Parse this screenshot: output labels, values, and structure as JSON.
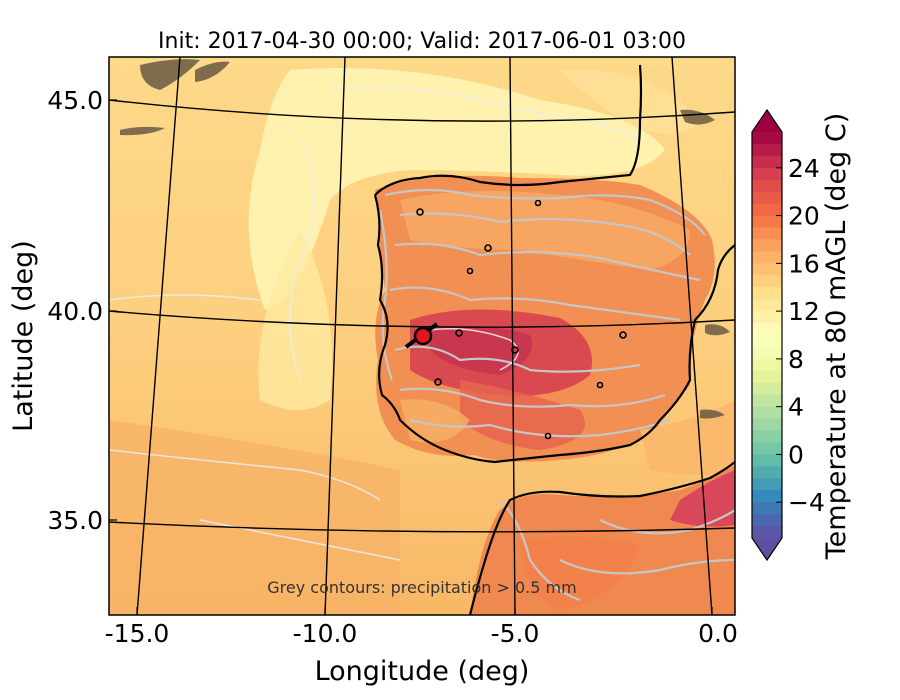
{
  "title": "Init: 2017-04-30 00:00; Valid: 2017-06-01 03:00",
  "xlabel": "Longitude (deg)",
  "ylabel": "Latitude (deg)",
  "x_ticks": [
    "-15.0",
    "-10.0",
    "-5.0",
    "0.0"
  ],
  "y_ticks": [
    "45.0",
    "40.0",
    "35.0"
  ],
  "annotation": "Grey contours: precipitation > 0.5 mm",
  "colorbar": {
    "label": "Temperature at 80 mAGL (deg C)",
    "ticks": [
      "24",
      "20",
      "16",
      "12",
      "8",
      "4",
      "0",
      "−4"
    ],
    "range": [
      -7,
      27
    ],
    "extend": "both"
  },
  "map": {
    "lon_range": [
      -16,
      0.3
    ],
    "lat_range": [
      32.6,
      46.2
    ],
    "marker_color": "#e8141c",
    "coast_color": "#000000",
    "precip_contour_color": "#c8c8c8"
  }
}
